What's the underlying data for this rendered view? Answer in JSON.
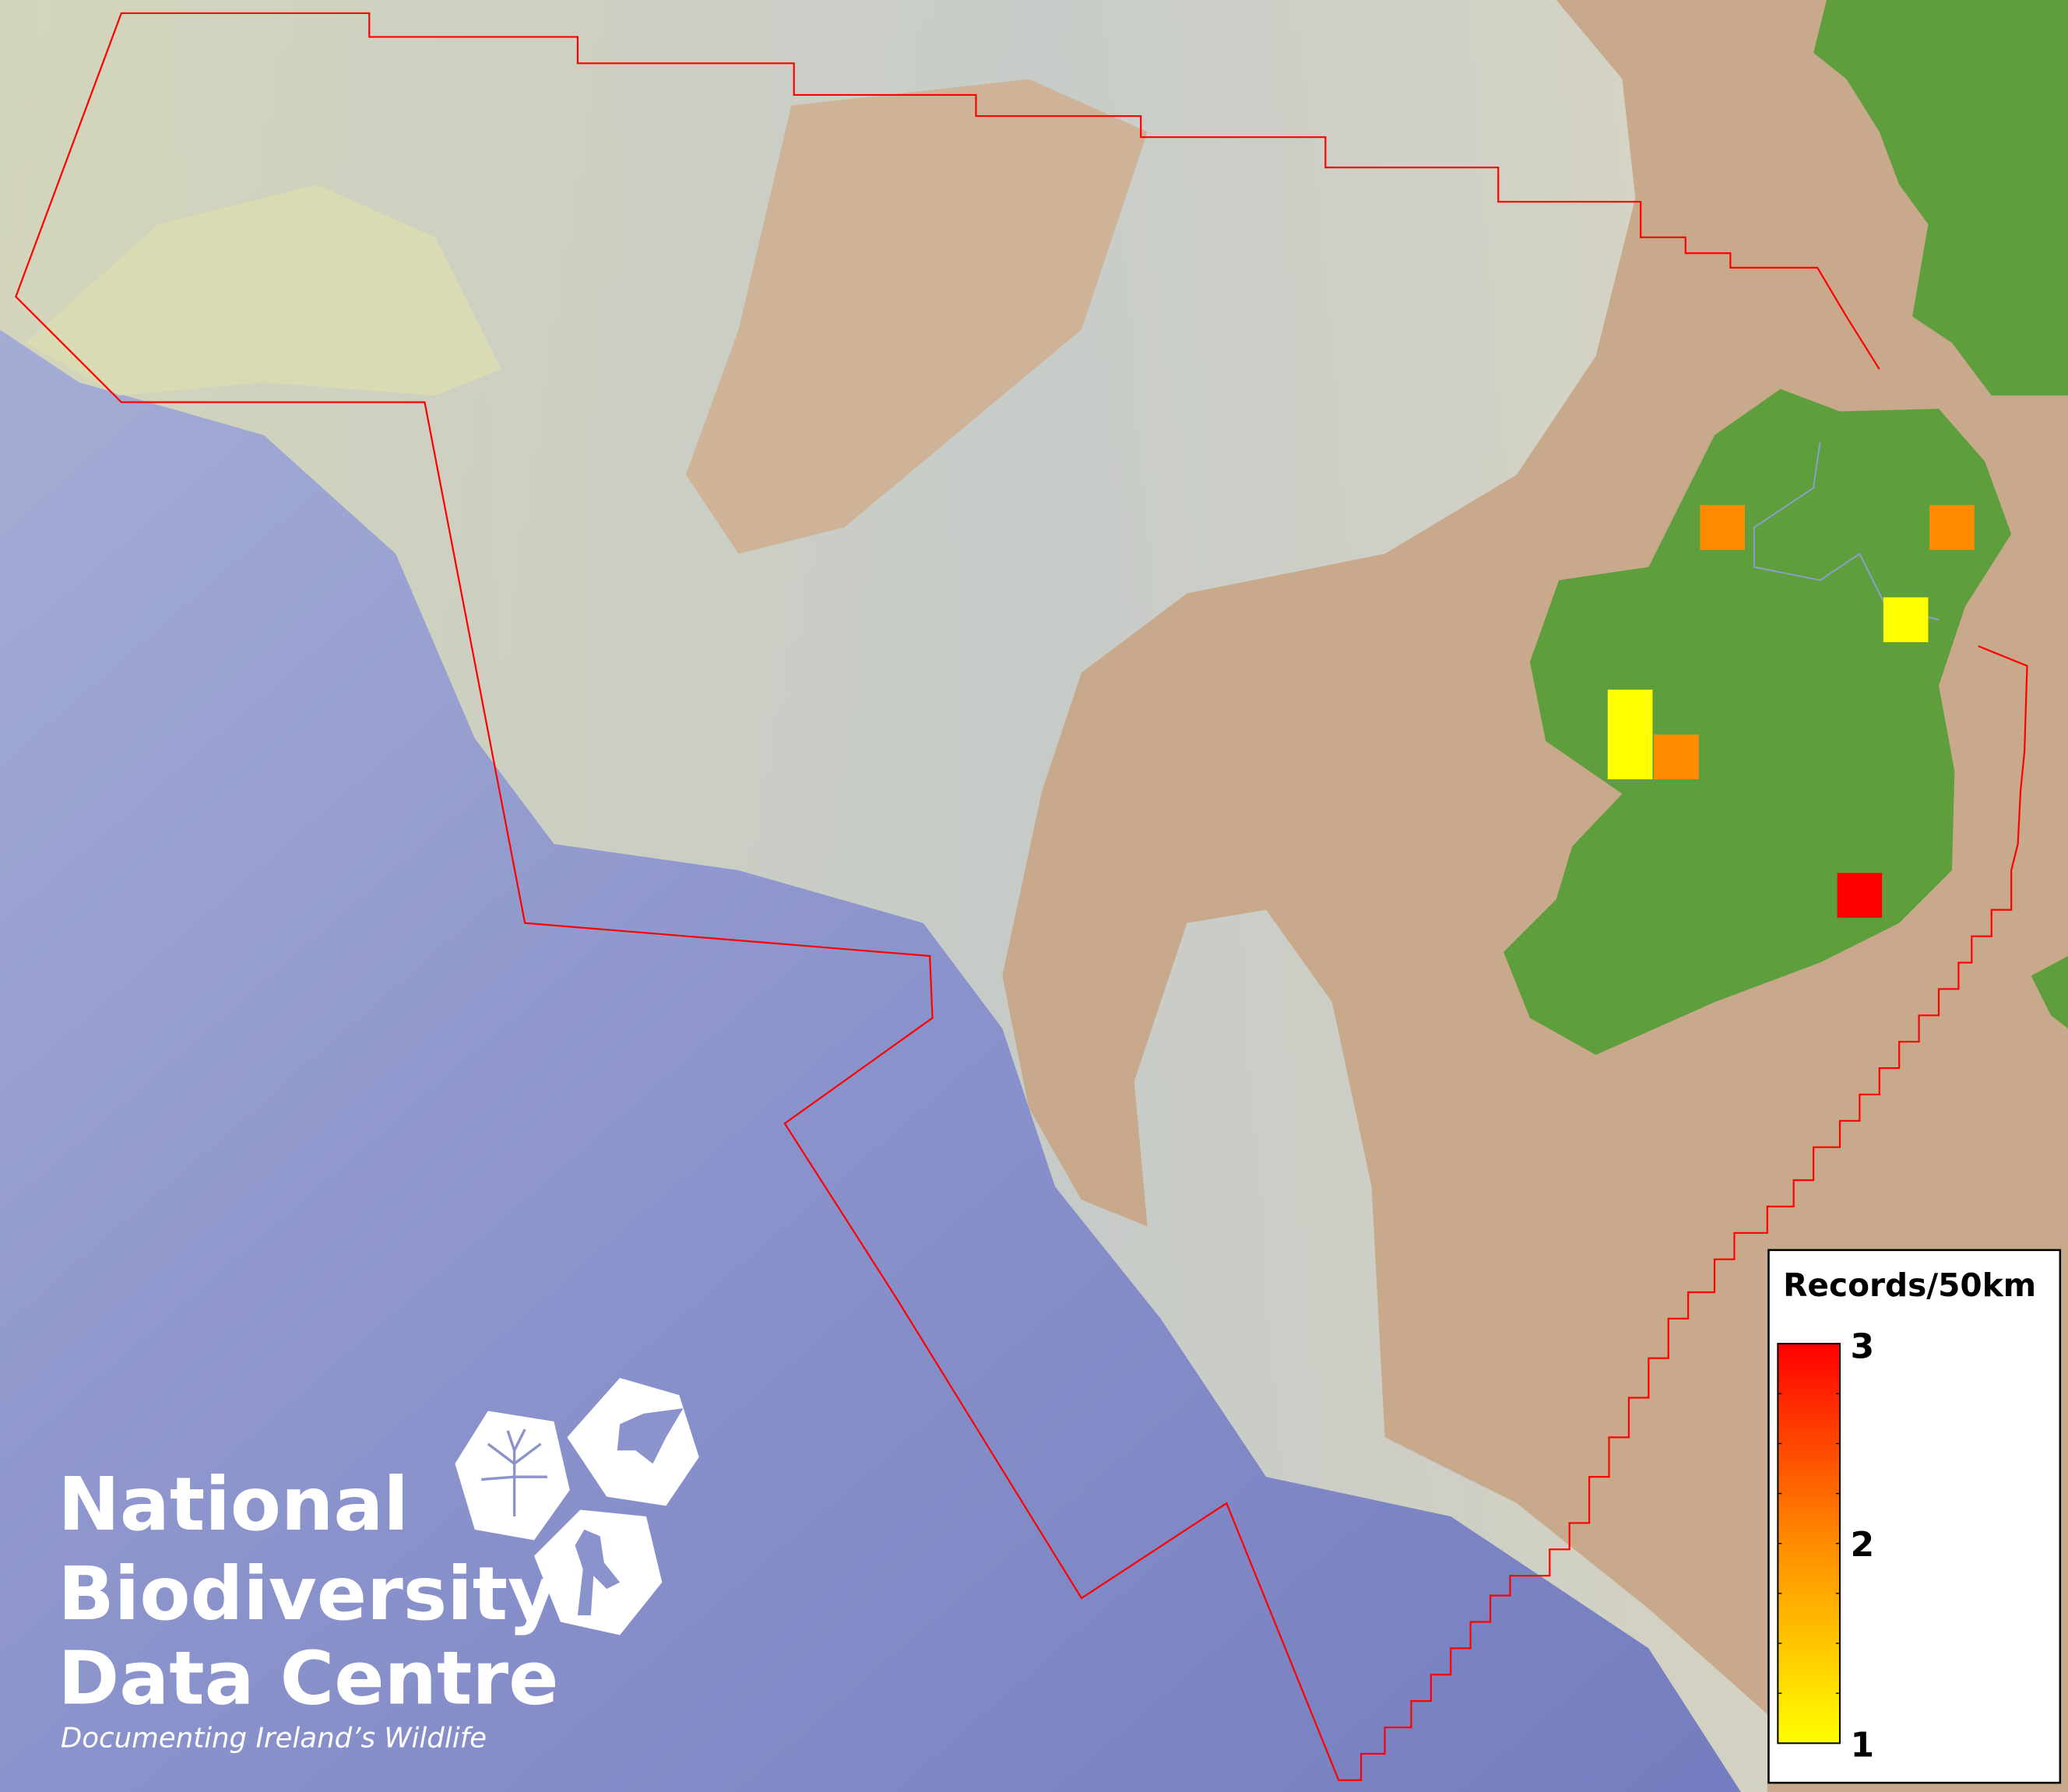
{
  "map": {
    "boundary_color": "#ff0000",
    "land_color": "#5f9e3c",
    "shelf_color": "#c9a98c",
    "deep_sea_color": "#7d86c4"
  },
  "records": {
    "cell_size": "50km",
    "values": [
      2,
      2,
      1,
      1,
      1,
      2,
      3
    ]
  },
  "legend": {
    "title": "Records/50km",
    "max_label": "3",
    "mid_label": "2",
    "min_label": "1",
    "range": [
      1,
      3
    ],
    "color_min": "#ffff00",
    "color_mid": "#ff8c00",
    "color_max": "#ff0000"
  },
  "logo": {
    "line1": "National",
    "line2": "Biodiversity",
    "line3": "Data Centre",
    "tagline": "Documenting Ireland’s Wildlife"
  }
}
